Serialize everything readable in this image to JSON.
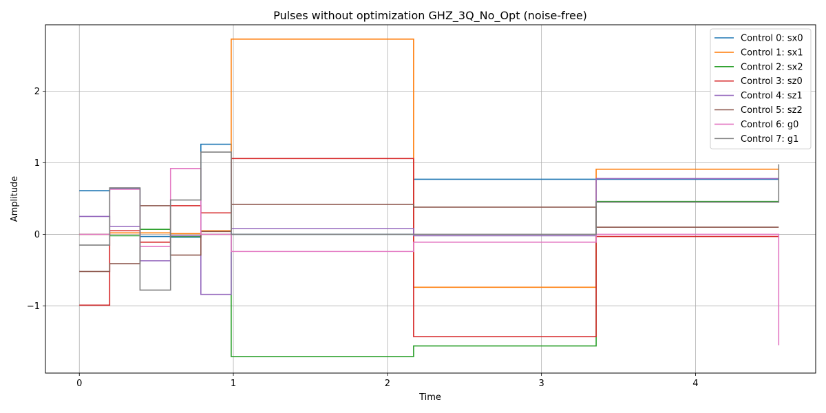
{
  "chart_data": {
    "type": "line",
    "step": "post",
    "title": "Pulses without optimization GHZ_3Q_No_Opt (noise-free)",
    "xlabel": "Time",
    "ylabel": "Amplitude",
    "xlim": [
      -0.22,
      4.78
    ],
    "ylim": [
      -1.94,
      2.93
    ],
    "xticks": [
      0,
      1,
      2,
      3,
      4
    ],
    "xtick_labels": [
      "0",
      "1",
      "2",
      "3",
      "4"
    ],
    "yticks": [
      -1,
      0,
      1,
      2
    ],
    "ytick_labels": [
      "−1",
      "0",
      "1",
      "2"
    ],
    "grid": true,
    "legend_position": "upper-right",
    "x": [
      0,
      0.197,
      0.394,
      0.592,
      0.789,
      0.986,
      2.17,
      3.355,
      4.54
    ],
    "series": [
      {
        "name": "Control 0: sx0",
        "color": "#1f77b4",
        "values": [
          0.61,
          0.64,
          -0.03,
          -0.04,
          1.26,
          0.0,
          0.77,
          0.77,
          0.77
        ]
      },
      {
        "name": "Control 1: sx1",
        "color": "#ff7f0e",
        "values": [
          0.0,
          0.02,
          0.02,
          0.01,
          0.05,
          2.73,
          -0.74,
          0.91,
          0.91
        ]
      },
      {
        "name": "Control 2: sx2",
        "color": "#2ca02c",
        "values": [
          0.0,
          -0.02,
          0.07,
          -0.03,
          0.0,
          -1.71,
          -1.56,
          0.46,
          0.46
        ]
      },
      {
        "name": "Control 3: sz0",
        "color": "#d62728",
        "values": [
          -0.99,
          0.05,
          -0.11,
          0.4,
          0.3,
          1.06,
          -1.43,
          -0.03,
          -0.03
        ]
      },
      {
        "name": "Control 4: sz1",
        "color": "#9467bd",
        "values": [
          0.25,
          0.11,
          -0.37,
          -0.02,
          -0.84,
          0.08,
          -0.02,
          0.78,
          0.78
        ]
      },
      {
        "name": "Control 5: sz2",
        "color": "#8c564b",
        "values": [
          -0.52,
          -0.41,
          0.4,
          -0.29,
          0.04,
          0.42,
          0.38,
          0.1,
          0.1
        ]
      },
      {
        "name": "Control 6: g0",
        "color": "#e377c2",
        "values": [
          0.0,
          0.63,
          -0.17,
          0.92,
          0.0,
          -0.24,
          -0.11,
          0.0,
          -1.55
        ]
      },
      {
        "name": "Control 7: g1",
        "color": "#7f7f7f",
        "values": [
          -0.15,
          0.65,
          -0.78,
          0.48,
          1.15,
          0.0,
          0.0,
          0.45,
          0.98
        ]
      }
    ]
  }
}
